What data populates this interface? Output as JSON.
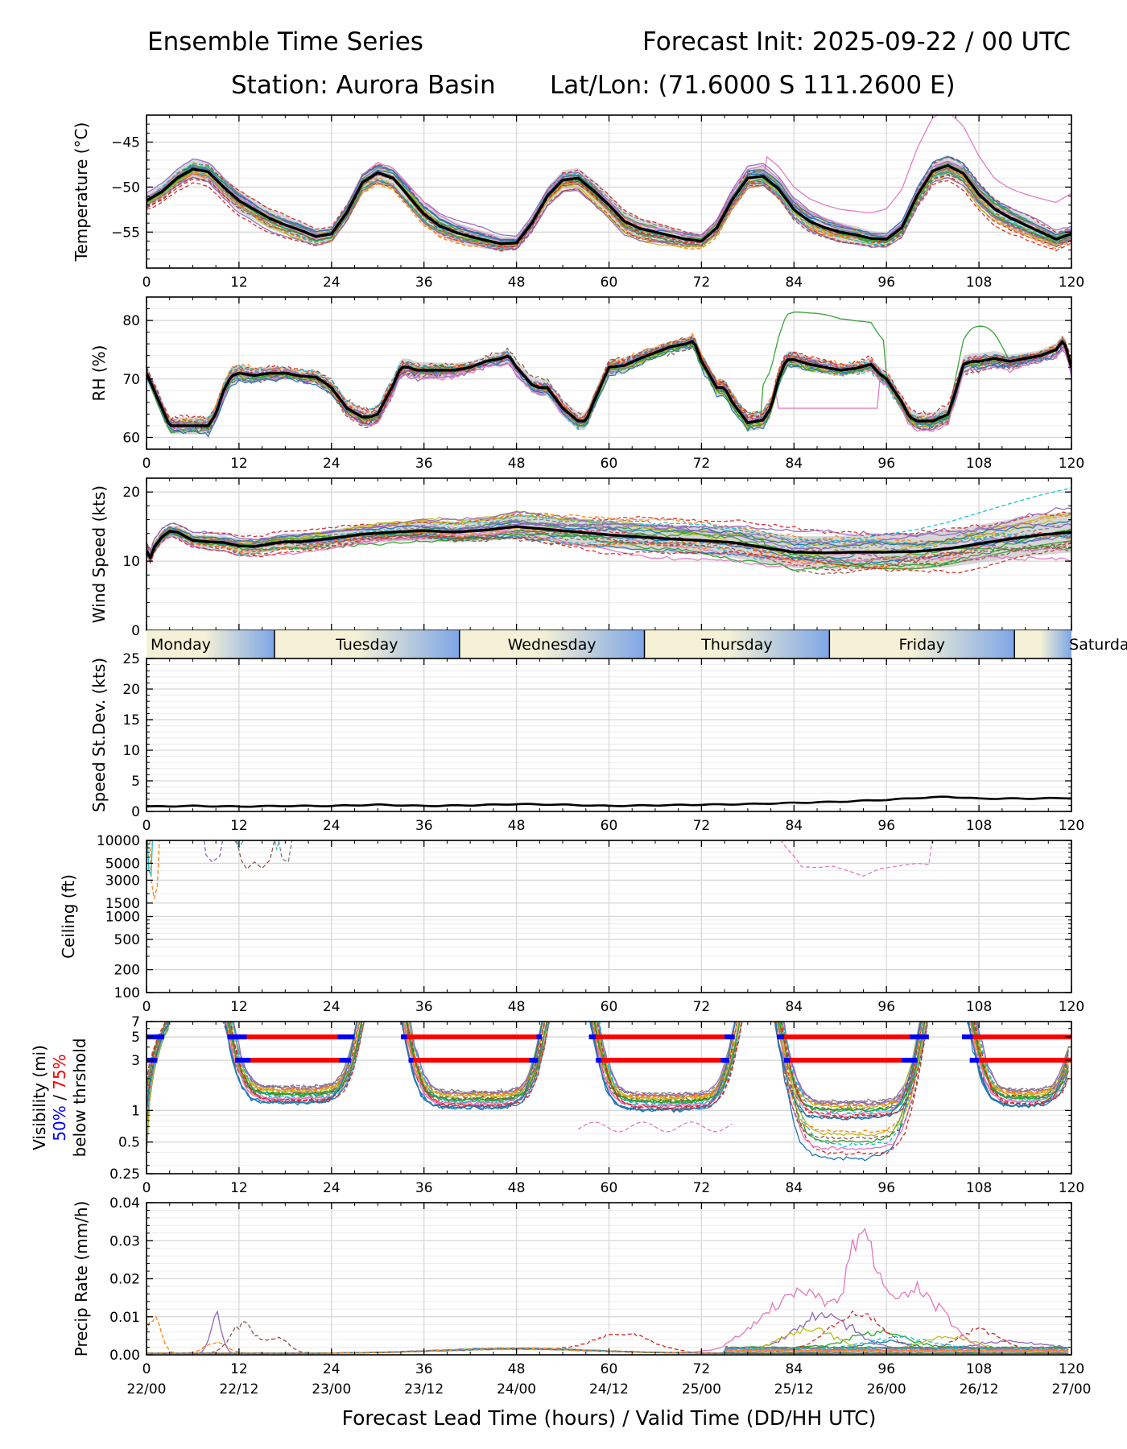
{
  "title": {
    "left": "Ensemble Time Series",
    "right": "Forecast Init: 2025-09-22 / 00 UTC",
    "station": "Station: Aurora Basin",
    "latlon": "Lat/Lon: (71.6000 S 111.2600 E)"
  },
  "xaxis": {
    "label": "Forecast Lead Time (hours) / Valid Time (DD/HH UTC)",
    "ticks": [
      0,
      12,
      24,
      36,
      48,
      60,
      72,
      84,
      96,
      108,
      120
    ],
    "valid_labels": [
      "22/00",
      "22/12",
      "23/00",
      "23/12",
      "24/00",
      "24/12",
      "25/00",
      "25/12",
      "26/00",
      "26/12",
      "27/00"
    ],
    "range": [
      0,
      120
    ]
  },
  "day_band": {
    "days": [
      "Monday",
      "Tuesday",
      "Wednesday",
      "Thursday",
      "Friday",
      "Saturday"
    ],
    "boundaries_hours": [
      16.6,
      40.6,
      64.6,
      88.6,
      112.6
    ]
  },
  "visibility_legend": {
    "line1": "Visibility (mi)",
    "p50": "50%",
    "slash": " / ",
    "p75": "75%",
    "line3": "below thrshold"
  },
  "colors": {
    "mean": "#000000",
    "spread": "#c8c8c8",
    "thr50": "#0000ff",
    "thr75": "#ff0000",
    "band_light": "#f4f1d6",
    "band_blue": "#7ea6e6",
    "members": [
      "#1f77b4",
      "#ff7f0e",
      "#2ca02c",
      "#d62728",
      "#9467bd",
      "#8c564b",
      "#e377c2",
      "#7f7f7f",
      "#bcbd22",
      "#17becf"
    ]
  },
  "chart_data": [
    {
      "type": "line",
      "name": "temperature",
      "ylabel": "Temperature (°C)",
      "ylim": [
        -59,
        -42
      ],
      "yticks": [
        -45,
        -50,
        -55
      ],
      "mean_series": {
        "x": [
          0,
          2,
          4,
          6,
          8,
          10,
          12,
          14,
          16,
          18,
          20,
          22,
          24,
          26,
          28,
          30,
          32,
          34,
          36,
          38,
          40,
          42,
          44,
          46,
          48,
          50,
          52,
          54,
          56,
          58,
          60,
          62,
          64,
          66,
          68,
          70,
          72,
          74,
          76,
          78,
          80,
          82,
          84,
          86,
          88,
          90,
          92,
          94,
          96,
          98,
          100,
          102,
          104,
          106,
          108,
          110,
          112,
          114,
          116,
          118,
          120
        ],
        "y": [
          -51.5,
          -50.5,
          -49,
          -48,
          -48.3,
          -50,
          -51.5,
          -52.5,
          -53.5,
          -54.2,
          -54.8,
          -55.5,
          -55.2,
          -52.8,
          -49.5,
          -48.4,
          -49,
          -51,
          -53,
          -54.3,
          -55,
          -55.5,
          -55.9,
          -56.3,
          -56.2,
          -54,
          -51,
          -49.2,
          -49,
          -50.4,
          -52,
          -53.8,
          -54.6,
          -55,
          -55.4,
          -55.8,
          -56,
          -54.5,
          -51.4,
          -49,
          -48.8,
          -50.2,
          -52.5,
          -53.8,
          -54.5,
          -55,
          -55.3,
          -55.7,
          -55.8,
          -54.5,
          -50.9,
          -48.2,
          -47.6,
          -48.5,
          -50.8,
          -52.4,
          -53.4,
          -54.2,
          -55,
          -55.8,
          -55.2
        ]
      }
    },
    {
      "type": "line",
      "name": "relative_humidity",
      "ylabel": "RH (%)",
      "ylim": [
        58,
        84
      ],
      "yticks": [
        60,
        70,
        80
      ],
      "mean_series": {
        "x": [
          0,
          1,
          2,
          3,
          4,
          5,
          6,
          8,
          9,
          10,
          11,
          12,
          14,
          16,
          18,
          20,
          22,
          23,
          24,
          26,
          28,
          29,
          30,
          32,
          33,
          34,
          35,
          36,
          38,
          40,
          42,
          44,
          46,
          47,
          48,
          50,
          51,
          52,
          54,
          56,
          57,
          58,
          60,
          62,
          64,
          66,
          68,
          70,
          71,
          72,
          74,
          75,
          76,
          78,
          80,
          81,
          82,
          83,
          84,
          86,
          88,
          90,
          92,
          94,
          95,
          96,
          98,
          99,
          100,
          102,
          104,
          105,
          106,
          107,
          108,
          110,
          112,
          114,
          116,
          118,
          119,
          120
        ],
        "y": [
          71,
          68,
          65,
          62,
          62,
          62,
          62,
          62,
          64,
          68,
          70.5,
          71,
          70.6,
          71,
          71,
          70.5,
          70.3,
          69.5,
          68.5,
          65,
          63.5,
          63.5,
          64,
          69,
          72,
          72,
          71.5,
          71.5,
          71.5,
          71.5,
          72,
          73,
          73.5,
          74,
          72,
          69,
          68.5,
          68.5,
          65,
          62.8,
          62.8,
          66,
          72,
          72.3,
          73.5,
          74.5,
          75.5,
          76,
          76.5,
          73,
          68.5,
          68.5,
          66,
          62.5,
          63,
          65,
          70,
          73.3,
          73.3,
          72.5,
          72,
          71.5,
          71.8,
          72.5,
          71,
          70,
          66,
          63.5,
          62.8,
          62.8,
          64,
          68,
          72.5,
          73,
          73,
          73.5,
          73,
          73.5,
          74,
          75,
          76.7,
          72
        ]
      }
    },
    {
      "type": "line",
      "name": "wind_speed",
      "ylabel": "Wind Speed (kts)",
      "ylim": [
        0,
        22
      ],
      "yticks": [
        0,
        10,
        20
      ],
      "mean_series": {
        "x": [
          0,
          0.5,
          1,
          2,
          3,
          4,
          6,
          8,
          10,
          12,
          14,
          16,
          18,
          20,
          24,
          28,
          32,
          36,
          40,
          44,
          48,
          52,
          56,
          60,
          64,
          68,
          72,
          76,
          80,
          84,
          88,
          92,
          96,
          100,
          104,
          108,
          112,
          116,
          120
        ],
        "y": [
          11.5,
          10.5,
          12,
          13.5,
          14.3,
          14.2,
          13,
          12.8,
          12.7,
          12.2,
          12.1,
          12.5,
          12.8,
          12.8,
          13.3,
          13.9,
          14.2,
          14.4,
          14.2,
          14.5,
          15,
          14.6,
          14.2,
          13.8,
          13.5,
          13.2,
          13,
          12.7,
          12,
          11.3,
          11.2,
          11.3,
          11.3,
          11.4,
          11.8,
          12.5,
          13.2,
          13.8,
          14.2
        ]
      }
    },
    {
      "type": "line",
      "name": "speed_stdev",
      "ylabel": "Speed St.Dev. (kts)",
      "ylim": [
        0,
        25
      ],
      "yticks": [
        0,
        5,
        10,
        15,
        20,
        25
      ],
      "mean_series": {
        "x": [
          0,
          6,
          12,
          18,
          24,
          30,
          36,
          42,
          48,
          54,
          60,
          66,
          72,
          78,
          84,
          90,
          96,
          100,
          104,
          108,
          114,
          120
        ],
        "y": [
          0.8,
          0.9,
          0.8,
          0.9,
          0.9,
          1.1,
          0.9,
          1.0,
          1.2,
          1.1,
          0.9,
          1.0,
          1.1,
          1.2,
          1.4,
          1.6,
          1.9,
          2.2,
          2.4,
          2.1,
          2.1,
          2.2
        ]
      }
    },
    {
      "type": "line",
      "name": "ceiling",
      "ylabel": "Ceiling (ft)",
      "yscale": "log",
      "ylim": [
        100,
        10000
      ],
      "yticks": [
        10000,
        5000,
        3000,
        1500,
        1000,
        500,
        200,
        100
      ]
    },
    {
      "type": "line",
      "name": "visibility",
      "yscale": "log",
      "ylim": [
        0.25,
        7
      ],
      "yticks": [
        7,
        5,
        3,
        1,
        0.5,
        0.25
      ],
      "thresholds": [
        5,
        3
      ],
      "segments_75pct": {
        "5": [
          [
            10.5,
            26.5
          ],
          [
            33,
            51
          ],
          [
            58,
            76
          ],
          [
            82,
            100
          ],
          [
            107,
            120
          ]
        ],
        "3": [
          [
            11.5,
            25.5
          ],
          [
            34,
            50
          ],
          [
            58.5,
            75
          ],
          [
            83,
            99
          ],
          [
            108,
            120
          ]
        ]
      },
      "segments_50pct": {
        "5": [
          [
            0,
            2.3
          ],
          [
            10.5,
            13
          ],
          [
            24.8,
            27
          ],
          [
            33,
            33.8
          ],
          [
            50.6,
            51.3
          ],
          [
            57.4,
            58.3
          ],
          [
            75,
            76.3
          ],
          [
            81.8,
            82.7
          ],
          [
            99,
            101.5
          ],
          [
            105.8,
            107.2
          ]
        ],
        "3": [
          [
            0,
            1.4
          ],
          [
            11.5,
            13.5
          ],
          [
            25,
            26.5
          ],
          [
            34,
            34.6
          ],
          [
            49.6,
            50.8
          ],
          [
            58.3,
            59
          ],
          [
            74.5,
            75.6
          ],
          [
            82.7,
            83.5
          ],
          [
            98,
            100
          ],
          [
            106.8,
            108
          ]
        ]
      }
    },
    {
      "type": "line",
      "name": "precip_rate",
      "ylabel": "Precip Rate (mm/h)",
      "ylim": [
        0,
        0.04
      ],
      "yticks": [
        0.0,
        0.01,
        0.02,
        0.03,
        0.04
      ]
    }
  ]
}
